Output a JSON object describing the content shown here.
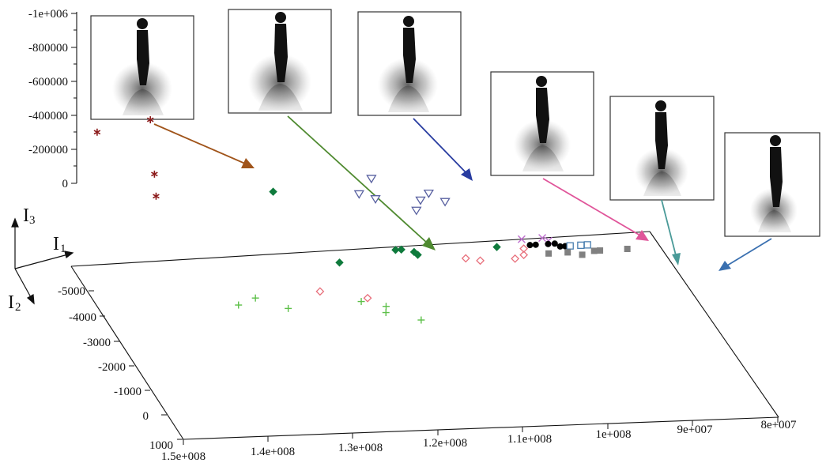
{
  "chart_data": {
    "type": "scatter",
    "dimensions": 3,
    "title": "",
    "axis_letters": {
      "I3": {
        "letter": "I",
        "sub": "3"
      },
      "I1": {
        "letter": "I",
        "sub": "1"
      },
      "I2": {
        "letter": "I",
        "sub": "2"
      }
    },
    "vertical_ticks": [
      "-1e+006",
      "-800000",
      "-600000",
      "-400000",
      "-200000",
      "0"
    ],
    "depth_ticks": [
      "-5000",
      "-4000",
      "-3000",
      "-2000",
      "-1000",
      "0",
      "1000"
    ],
    "horizontal_ticks": [
      "1.5e+008",
      "1.4e+008",
      "1.3e+008",
      "1.2e+008",
      "1.1e+008",
      "1e+008",
      "9e+007",
      "8e+007"
    ],
    "xlim": [
      150000000,
      80000000
    ],
    "ylim": [
      -5000,
      1000
    ],
    "zlim": [
      -1000000,
      0
    ],
    "series": [
      {
        "marker": "asterisk",
        "color": "#8b1a1a",
        "points": [
          {
            "x": 147500000,
            "z": -300000
          },
          {
            "x": 141000000,
            "z": -370000
          },
          {
            "x": 140500000,
            "z": -50000
          },
          {
            "x": 140300000,
            "z": 80000
          }
        ]
      },
      {
        "marker": "plus",
        "color": "#5ec04a",
        "points": [
          {
            "x": 133500000,
            "y": -3400
          },
          {
            "x": 131000000,
            "y": -3600
          },
          {
            "x": 128000000,
            "y": -3200
          },
          {
            "x": 119000000,
            "y": -3300
          },
          {
            "x": 117000000,
            "y": -2900
          },
          {
            "x": 116500000,
            "y": -3100
          },
          {
            "x": 113500000,
            "y": -2600
          }
        ]
      },
      {
        "marker": "diamond-open",
        "color": "#e8707c",
        "points": [
          {
            "x": 123000000,
            "y": -3700
          },
          {
            "x": 118000000,
            "y": -3400
          },
          {
            "x": 103500000,
            "y": -4500
          },
          {
            "x": 102000000,
            "y": -4400
          },
          {
            "x": 97800000,
            "y": -4400
          },
          {
            "x": 96500000,
            "y": -4500
          },
          {
            "x": 96000000,
            "y": -4700
          }
        ]
      },
      {
        "marker": "diamond-filled",
        "color": "#0f7a3c",
        "points": [
          {
            "x": 118500000,
            "y": -4600
          },
          {
            "x": 111000000,
            "y": -4900
          },
          {
            "x": 110300000,
            "y": -4900
          },
          {
            "x": 109000000,
            "y": -4800
          },
          {
            "x": 108800000,
            "y": -4700
          },
          {
            "x": 99000000,
            "y": -4800
          },
          {
            "x": 126000000,
            "z": 60000
          }
        ]
      },
      {
        "marker": "triangle-down-open",
        "color": "#5860a0",
        "points": [
          {
            "x": 114000000,
            "z": -10000
          },
          {
            "x": 115500000,
            "z": 80000
          },
          {
            "x": 113500000,
            "z": 110000
          },
          {
            "x": 107000000,
            "z": 80000
          },
          {
            "x": 108000000,
            "z": 120000
          },
          {
            "x": 105000000,
            "z": 130000
          },
          {
            "x": 108500000,
            "z": 180000
          }
        ]
      },
      {
        "marker": "x",
        "color": "#c070d0",
        "points": [
          {
            "x": 95500000,
            "y": -5000
          },
          {
            "x": 93000000,
            "y": -5000
          },
          {
            "x": 92500000,
            "y": -4900
          }
        ]
      },
      {
        "marker": "circle-filled",
        "color": "#000000",
        "points": [
          {
            "x": 95000000,
            "y": -4800
          },
          {
            "x": 94300000,
            "y": -4800
          },
          {
            "x": 92800000,
            "y": -4800
          },
          {
            "x": 92000000,
            "y": -4800
          },
          {
            "x": 91600000,
            "y": -4700
          },
          {
            "x": 91000000,
            "y": -4700
          },
          {
            "x": 90600000,
            "y": -4700
          }
        ]
      },
      {
        "marker": "square-open",
        "color": "#4a7fb0",
        "points": [
          {
            "x": 90400000,
            "y": -4700
          },
          {
            "x": 89100000,
            "y": -4700
          },
          {
            "x": 88300000,
            "y": -4700
          }
        ]
      },
      {
        "marker": "square-filled",
        "color": "#808080",
        "points": [
          {
            "x": 93500000,
            "y": -4500
          },
          {
            "x": 91200000,
            "y": -4500
          },
          {
            "x": 89700000,
            "y": -4400
          },
          {
            "x": 88000000,
            "y": -4500
          },
          {
            "x": 87300000,
            "y": -4500
          },
          {
            "x": 84000000,
            "y": -4500
          }
        ]
      }
    ],
    "annotations": [
      {
        "image": "gait-energy-image-1",
        "arrow_color": "#a0541a",
        "target_series": 0
      },
      {
        "image": "gait-energy-image-2",
        "arrow_color": "#4f8a30",
        "target_series": 3
      },
      {
        "image": "gait-energy-image-3",
        "arrow_color": "#283ca0",
        "target_series": 4
      },
      {
        "image": "gait-energy-image-4",
        "arrow_color": "#e0559a",
        "target_series": 5
      },
      {
        "image": "gait-energy-image-5",
        "arrow_color": "#4a9a98",
        "target_series": 6
      },
      {
        "image": "gait-energy-image-6",
        "arrow_color": "#3a70b0",
        "target_series": 7
      }
    ]
  }
}
